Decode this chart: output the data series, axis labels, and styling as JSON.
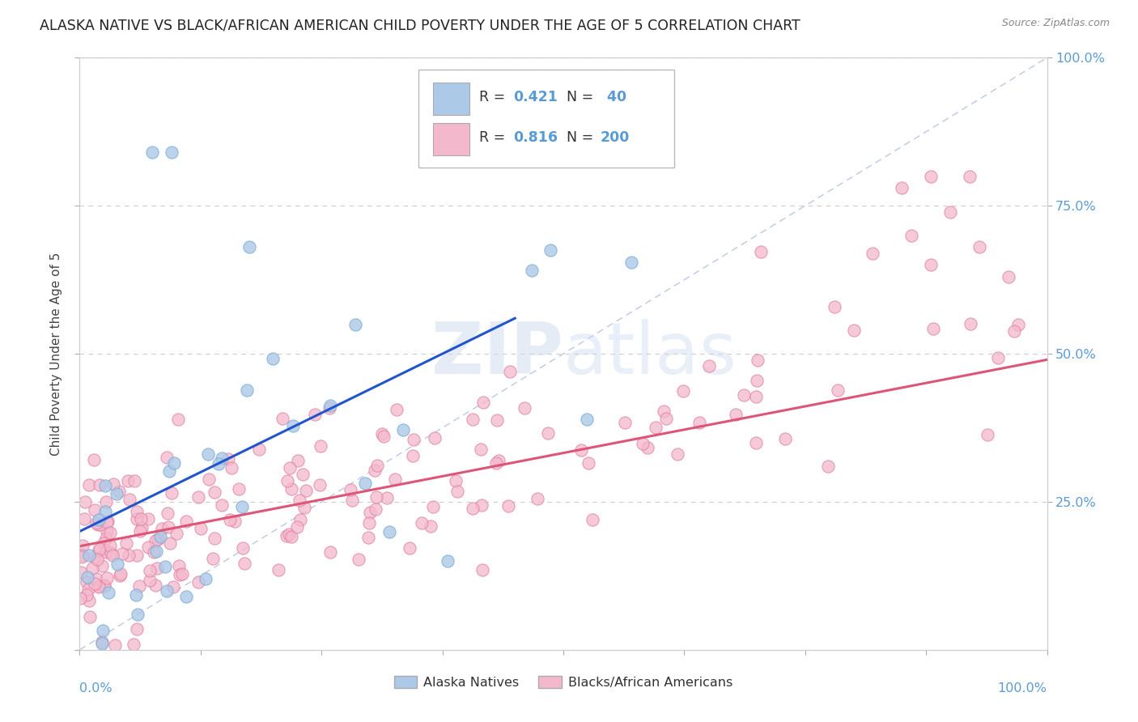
{
  "title": "ALASKA NATIVE VS BLACK/AFRICAN AMERICAN CHILD POVERTY UNDER THE AGE OF 5 CORRELATION CHART",
  "source": "Source: ZipAtlas.com",
  "ylabel": "Child Poverty Under the Age of 5",
  "watermark": "ZIPatlas",
  "background_color": "#ffffff",
  "plot_bg_color": "#ffffff",
  "grid_color": "#cccccc",
  "diagonal_color": "#aabbdd",
  "title_color": "#222222",
  "title_fontsize": 12.5,
  "axis_label_color": "#444444",
  "tick_label_color": "#5b9bd5",
  "alaska_scatter_color": "#adc9e8",
  "alaska_scatter_edge": "#7aadd4",
  "black_scatter_color": "#f4b8cc",
  "black_scatter_edge": "#e080a0",
  "alaska_line_color": "#2255cc",
  "black_line_color": "#dd5577",
  "alaska_R": 0.421,
  "alaska_N": 40,
  "black_R": 0.816,
  "black_N": 200,
  "legend_alaska_color": "#adc9e8",
  "legend_black_color": "#f4b8cc",
  "xlim": [
    0.0,
    1.0
  ],
  "ylim": [
    0.0,
    1.0
  ],
  "alaska_line_x0": 0.0,
  "alaska_line_y0": 0.2,
  "alaska_line_x1": 0.45,
  "alaska_line_y1": 0.56,
  "black_line_x0": 0.0,
  "black_line_y0": 0.175,
  "black_line_x1": 1.0,
  "black_line_y1": 0.49
}
